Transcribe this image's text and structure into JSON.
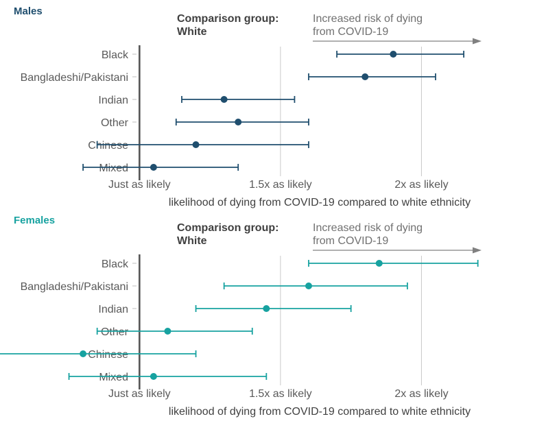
{
  "chart_data": [
    {
      "type": "forest",
      "title": "Males",
      "color": "#1f4e6e",
      "comparison_label": [
        "Comparison group:",
        "White"
      ],
      "annotation": [
        "Increased risk of dying",
        "from COVID-19"
      ],
      "xlabel": "likelihood of dying from COVID-19 compared to white ethnicity",
      "xticks": [
        {
          "value": 1.0,
          "label": "Just as likely"
        },
        {
          "value": 1.5,
          "label": "1.5x as likely"
        },
        {
          "value": 2.0,
          "label": "2x as likely"
        }
      ],
      "xlim": [
        0.7,
        2.5
      ],
      "reference": 1.0,
      "categories": [
        "Black",
        "Bangladeshi/Pakistani",
        "Indian",
        "Other",
        "Chinese",
        "Mixed"
      ],
      "estimates": [
        1.9,
        1.8,
        1.3,
        1.35,
        1.2,
        1.05
      ],
      "lower": [
        1.7,
        1.6,
        1.15,
        1.13,
        0.85,
        0.8
      ],
      "upper": [
        2.15,
        2.05,
        1.55,
        1.6,
        1.6,
        1.35
      ]
    },
    {
      "type": "forest",
      "title": "Females",
      "color": "#17a2a0",
      "comparison_label": [
        "Comparison group:",
        "White"
      ],
      "annotation": [
        "Increased risk of dying",
        "from COVID-19"
      ],
      "xlabel": "likelihood of dying from COVID-19 compared to white ethnicity",
      "xticks": [
        {
          "value": 1.0,
          "label": "Just as likely"
        },
        {
          "value": 1.5,
          "label": "1.5x as likely"
        },
        {
          "value": 2.0,
          "label": "2x as likely"
        }
      ],
      "xlim": [
        0.7,
        2.5
      ],
      "reference": 1.0,
      "categories": [
        "Black",
        "Bangladeshi/Pakistani",
        "Indian",
        "Other",
        "Chinese",
        "Mixed"
      ],
      "estimates": [
        1.85,
        1.6,
        1.45,
        1.1,
        0.8,
        1.05
      ],
      "lower": [
        1.6,
        1.3,
        1.2,
        0.85,
        0.5,
        0.75
      ],
      "upper": [
        2.2,
        1.95,
        1.75,
        1.4,
        1.2,
        1.45
      ]
    }
  ]
}
